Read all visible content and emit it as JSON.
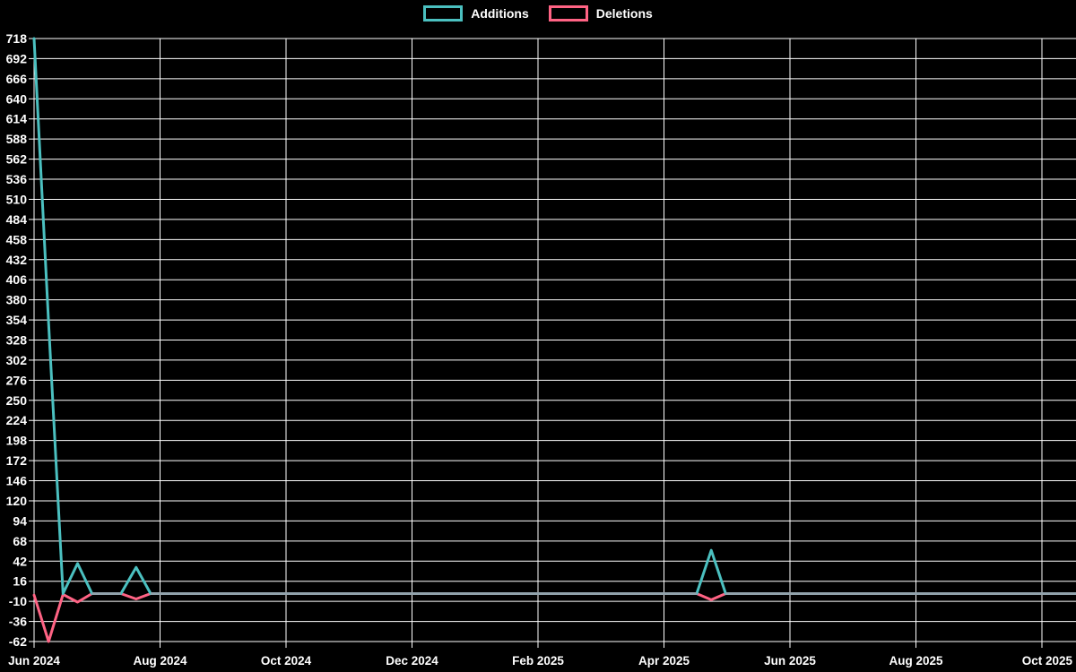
{
  "chart_data": {
    "type": "line",
    "title": "",
    "xlabel": "",
    "ylabel": "",
    "background_color": "#000000",
    "grid": true,
    "grid_color": "#ffffff",
    "axis_text_color": "#ffffff",
    "legend_position": "top",
    "x_unit": "months since Jun 2024",
    "x_tick_labels": [
      "Jun 2024",
      "Aug 2024",
      "Oct 2024",
      "Dec 2024",
      "Feb 2025",
      "Apr 2025",
      "Jun 2025",
      "Aug 2025",
      "Oct 2025"
    ],
    "x_tick_positions": [
      0,
      2,
      4,
      6,
      8,
      10,
      12,
      14,
      16
    ],
    "xlim": [
      0,
      16.54
    ],
    "y_ticks": [
      718,
      692,
      666,
      640,
      614,
      588,
      562,
      536,
      510,
      484,
      458,
      432,
      406,
      380,
      354,
      328,
      302,
      276,
      250,
      224,
      198,
      172,
      146,
      120,
      94,
      68,
      42,
      16,
      -10,
      -36,
      -62
    ],
    "ylim": [
      -62,
      718
    ],
    "overlap_color": "#91A2AB",
    "series": [
      {
        "name": "Additions",
        "color": "#4BC0C0",
        "points": [
          [
            0,
            718
          ],
          [
            0.23,
            350
          ],
          [
            0.46,
            0
          ],
          [
            0.69,
            39
          ],
          [
            0.92,
            0
          ],
          [
            1.15,
            0
          ],
          [
            1.38,
            0
          ],
          [
            1.62,
            34
          ],
          [
            1.85,
            0
          ],
          [
            10.52,
            0
          ],
          [
            10.75,
            56
          ],
          [
            10.98,
            0
          ],
          [
            16.54,
            0
          ]
        ]
      },
      {
        "name": "Deletions",
        "color": "#FF6384",
        "points": [
          [
            0,
            -2
          ],
          [
            0.23,
            -62
          ],
          [
            0.46,
            -1
          ],
          [
            0.69,
            -11
          ],
          [
            0.92,
            0
          ],
          [
            1.15,
            0
          ],
          [
            1.38,
            0
          ],
          [
            1.62,
            -7
          ],
          [
            1.85,
            0
          ],
          [
            10.52,
            0
          ],
          [
            10.75,
            -8
          ],
          [
            10.98,
            0
          ],
          [
            16.54,
            0
          ]
        ]
      }
    ]
  }
}
